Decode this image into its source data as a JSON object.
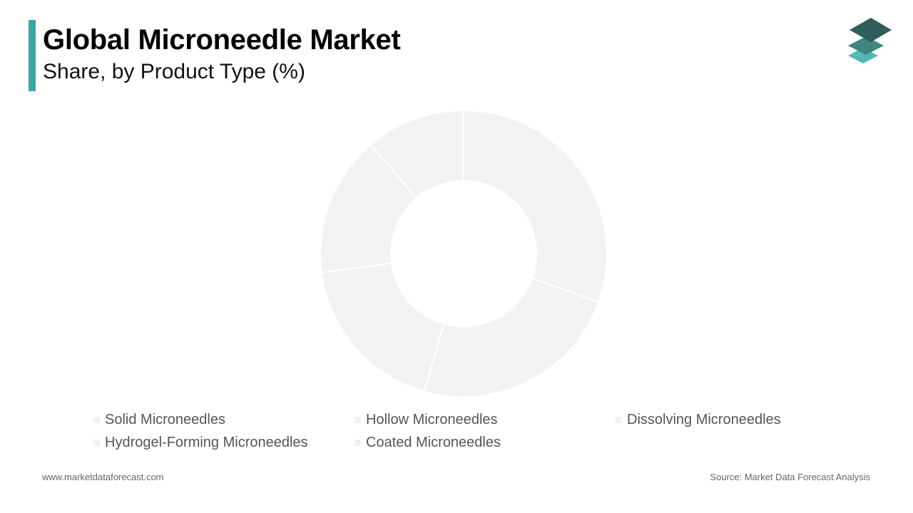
{
  "header": {
    "title": "Global Microneedle Market",
    "subtitle": "Share, by Product Type (%)"
  },
  "colors": {
    "accent": "#3aa6a2",
    "slice_fill": "#f2f2f2",
    "slice_stroke": "#ffffff",
    "logo_dark": "#2e5e5a",
    "logo_mid": "#3f8580",
    "logo_light": "#4fb9b3"
  },
  "logo": {
    "icon": "stacked-layers-icon"
  },
  "chart_data": {
    "type": "pie",
    "donut": true,
    "categories": [
      "Solid Microneedles",
      "Hollow Microneedles",
      "Dissolving Microneedles",
      "Hydrogel-Forming Microneedles",
      "Coated Microneedles"
    ],
    "values": [
      30.5,
      23.9,
      18.5,
      15.9,
      11.2
    ],
    "legend_position": "bottom"
  },
  "legend": {
    "items": [
      "Solid Microneedles",
      "Hollow Microneedles",
      "Dissolving Microneedles",
      "Hydrogel-Forming Microneedles",
      "Coated Microneedles"
    ]
  },
  "footer": {
    "website": "www.marketdataforecast.com",
    "source": "Source: Market Data Forecast Analysis"
  }
}
